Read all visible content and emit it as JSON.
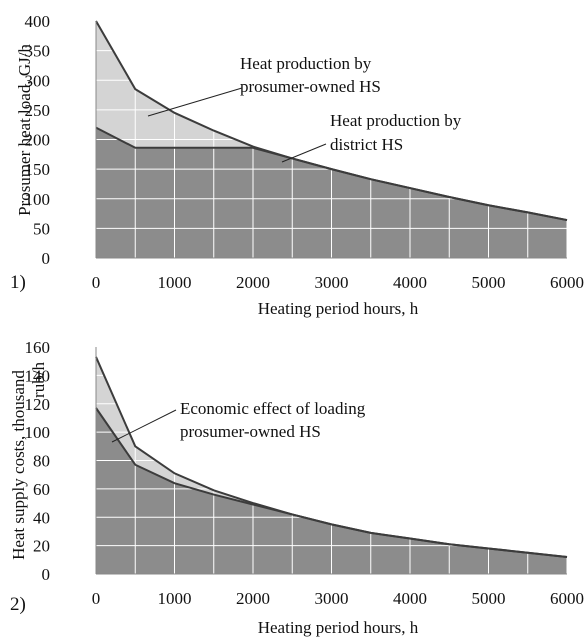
{
  "colors": {
    "upper_fill": "#d4d4d4",
    "lower_fill": "#8c8c8c",
    "line": "#3c3c3c",
    "grid": "#ffffff",
    "text": "#111111"
  },
  "chart_data": [
    {
      "type": "area",
      "panel_label": "1)",
      "xlabel": "Heating period hours, h",
      "ylabel": "Prosumer heat load, GJ/h",
      "xlim": [
        0,
        6000
      ],
      "ylim": [
        0,
        400
      ],
      "xticks": [
        0,
        1000,
        2000,
        3000,
        4000,
        5000,
        6000
      ],
      "yticks": [
        0,
        50,
        100,
        150,
        200,
        250,
        300,
        350,
        400
      ],
      "grid": true,
      "series": [
        {
          "name": "Heat production by prosumer-owned HS",
          "role": "upper",
          "x": [
            0,
            500,
            1000,
            1500,
            2000,
            2500,
            3000,
            3500,
            4000,
            4500,
            5000,
            5500,
            6000
          ],
          "values": [
            400,
            285,
            245,
            215,
            188,
            168,
            150,
            133,
            118,
            103,
            89,
            77,
            64
          ]
        },
        {
          "name": "Heat production by district HS",
          "role": "lower",
          "x": [
            0,
            500,
            1000,
            1500,
            2000,
            2500,
            3000,
            3500,
            4000,
            4500,
            5000,
            5500,
            6000
          ],
          "values": [
            220,
            186,
            186,
            186,
            186,
            168,
            150,
            133,
            118,
            103,
            89,
            77,
            64
          ]
        }
      ],
      "annotations": [
        {
          "lines": [
            "Heat production by",
            "prosumer-owned HS"
          ]
        },
        {
          "lines": [
            "Heat production by",
            "district HS"
          ]
        }
      ]
    },
    {
      "type": "area",
      "panel_label": "2)",
      "xlabel": "Heating period hours, h",
      "ylabel": "Heat supply costs, thousand rub/h",
      "xlim": [
        0,
        6000
      ],
      "ylim": [
        0,
        160
      ],
      "xticks": [
        0,
        1000,
        2000,
        3000,
        4000,
        5000,
        6000
      ],
      "yticks": [
        0,
        20,
        40,
        60,
        80,
        100,
        120,
        140,
        160
      ],
      "grid": true,
      "series": [
        {
          "name": "upper",
          "role": "upper",
          "x": [
            0,
            500,
            1000,
            1500,
            2000,
            2500,
            3000,
            3500,
            4000,
            4500,
            5000,
            5500,
            6000
          ],
          "values": [
            153,
            90,
            71,
            59,
            50,
            42,
            35,
            29,
            25,
            21,
            18,
            15,
            12
          ]
        },
        {
          "name": "lower",
          "role": "lower",
          "x": [
            0,
            500,
            1000,
            1500,
            2000,
            2500,
            3000,
            3500,
            4000,
            4500,
            5000,
            5500,
            6000
          ],
          "values": [
            117,
            77,
            64,
            56,
            49,
            42,
            35,
            29,
            25,
            21,
            18,
            15,
            12
          ]
        }
      ],
      "annotations": [
        {
          "lines": [
            "Economic effect of loading",
            "prosumer-owned HS"
          ]
        }
      ]
    }
  ]
}
